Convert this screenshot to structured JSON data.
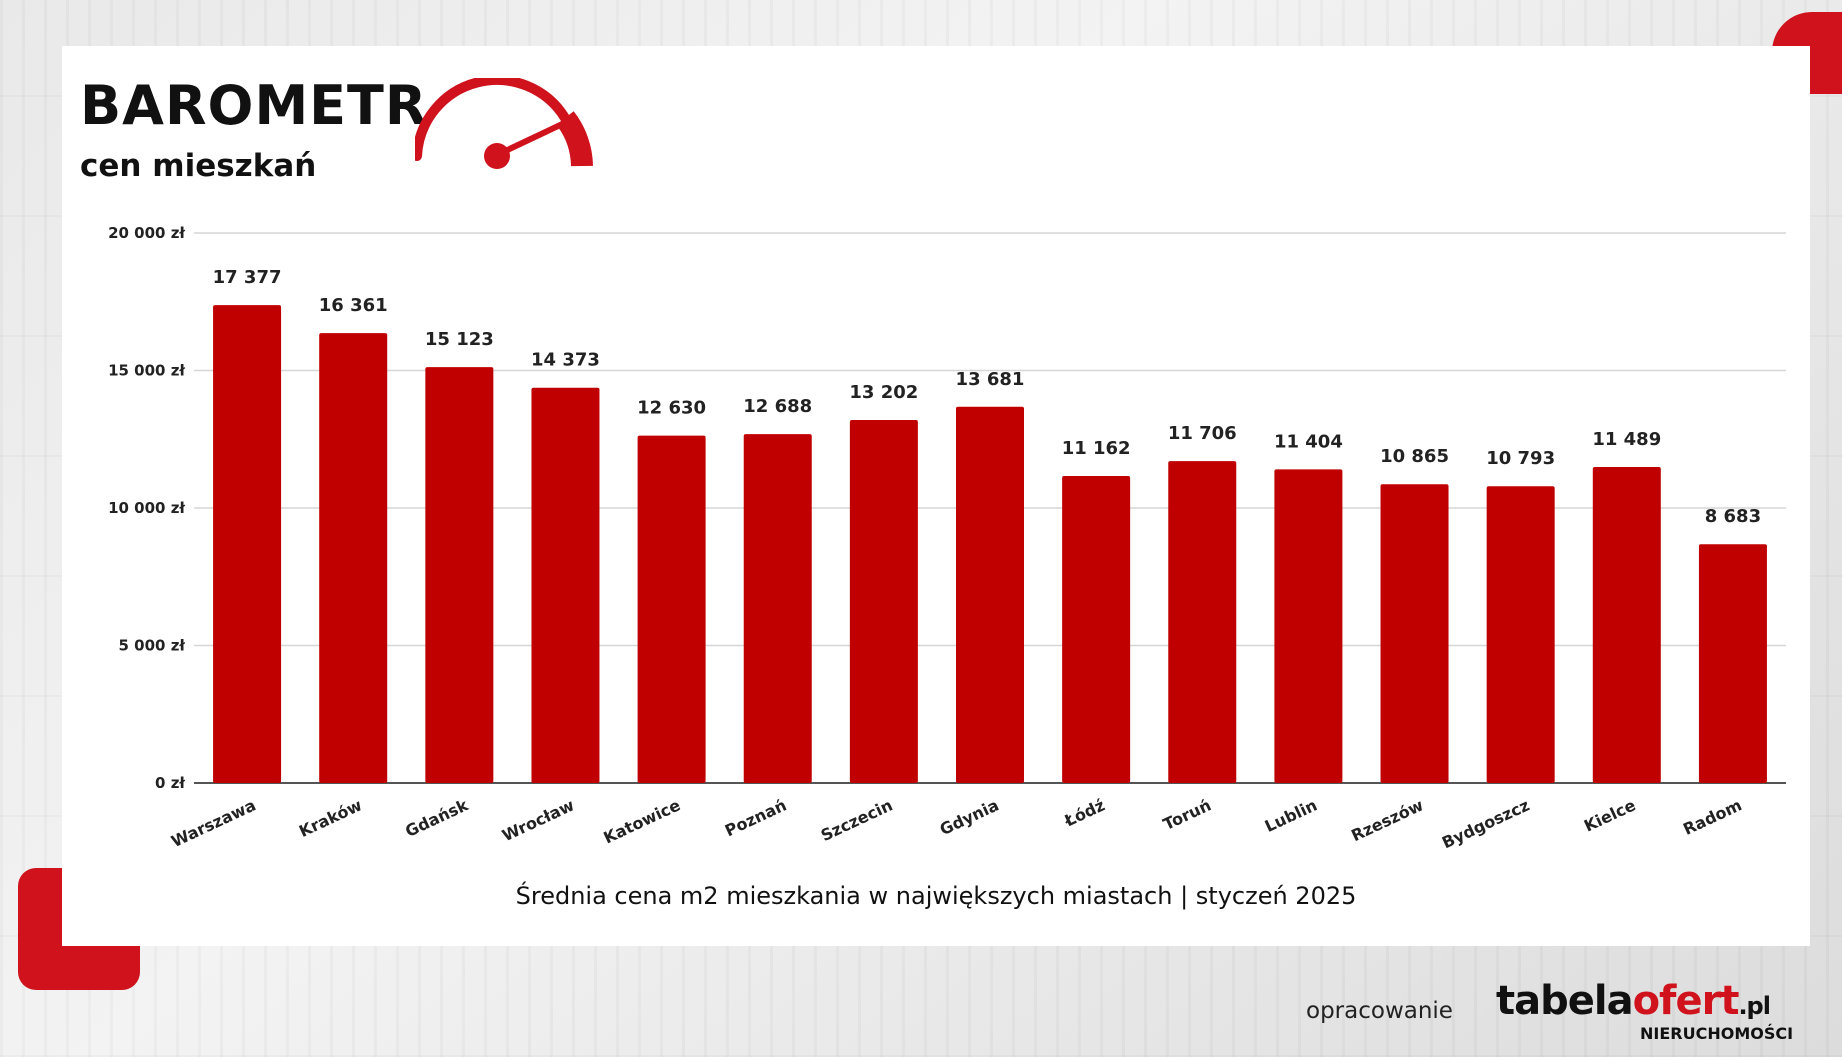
{
  "header": {
    "title": "BAROMETR",
    "subtitle": "cen mieszkań"
  },
  "caption": "Średnia cena m2 mieszkania w największych miastach | styczeń 2025",
  "footer": {
    "credit": "opracowanie",
    "logo_main": "tabela",
    "logo_accent": "ofert",
    "logo_tld": ".pl",
    "logo_sub": "NIERUCHOMOŚCI"
  },
  "colors": {
    "bar": "#c00000",
    "accent": "#d0121d"
  },
  "chart_data": {
    "type": "bar",
    "categories": [
      "Warszawa",
      "Kraków",
      "Gdańsk",
      "Wrocław",
      "Katowice",
      "Poznań",
      "Szczecin",
      "Gdynia",
      "Łódź",
      "Toruń",
      "Lublin",
      "Rzeszów",
      "Bydgoszcz",
      "Kielce",
      "Radom"
    ],
    "values": [
      17377,
      16361,
      15123,
      14373,
      12630,
      12688,
      13202,
      13681,
      11162,
      11706,
      11404,
      10865,
      10793,
      11489,
      8683
    ],
    "value_labels": [
      "17 377",
      "16 361",
      "15 123",
      "14 373",
      "12 630",
      "12 688",
      "13 202",
      "13 681",
      "11 162",
      "11 706",
      "11 404",
      "10 865",
      "10 793",
      "11 489",
      "8 683"
    ],
    "y_ticks": [
      0,
      5000,
      10000,
      15000,
      20000
    ],
    "y_tick_labels": [
      "0 zł",
      "5 000 zł",
      "10 000 zł",
      "15 000 zł",
      "20 000 zł"
    ],
    "ylim": [
      0,
      20000
    ],
    "grid": true,
    "legend": "none"
  }
}
